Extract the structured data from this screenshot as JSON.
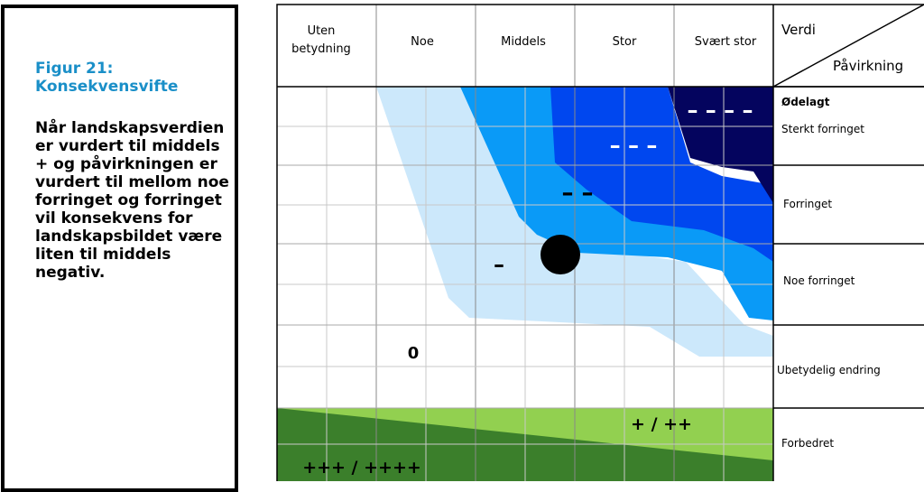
{
  "caption": {
    "title": "Figur 21: Konsekvensvifte",
    "body": "Når landskapsverdien er vurdert til middels + og påvirkningen er vurdert til mellom noe forringet og forringet vil konsekvens for landskapsbildet være liten til middels negativ."
  },
  "columns": [
    "Uten betydning",
    "Noe",
    "Middels",
    "Stor",
    "Svært stor"
  ],
  "corner": {
    "top_label": "Verdi",
    "bottom_label": "Påvirkning"
  },
  "rows": [
    "Ødelagt",
    "Sterkt forringet",
    "Forringet",
    "Noe forringet",
    "Ubetydelig endring",
    "Forbedret"
  ],
  "consequence_symbols": {
    "very_large_negative": "– – – –",
    "large_negative": "– – –",
    "medium_negative": "– –",
    "small_negative": "–",
    "neutral": "0",
    "positive": "+ / ++",
    "very_positive": "+++ / ++++"
  },
  "colors": {
    "lightest_blue": "#cce8fb",
    "medium_blue": "#0a9af7",
    "blue": "#0047ef",
    "dark_navy": "#04045e",
    "light_green": "#92d050",
    "dark_green": "#3b7f2b",
    "grid": "#c8c8c8",
    "caption_title": "#1a8fc8"
  },
  "marker": {
    "label": "vurdering-punkt",
    "shape": "circle"
  }
}
